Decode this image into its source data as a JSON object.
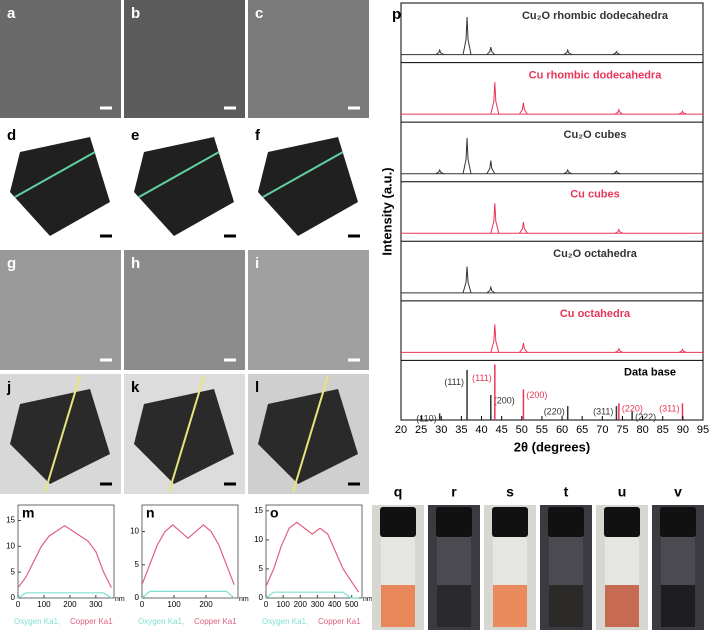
{
  "image_labels": [
    "a",
    "b",
    "c",
    "d",
    "e",
    "f",
    "g",
    "h",
    "i",
    "j",
    "k",
    "l"
  ],
  "xrd": {
    "label": "p",
    "ylabel": "Intensity (a.u.)",
    "xlabel": "2θ (degrees)",
    "xlim": [
      20,
      95
    ],
    "xticks": [
      20,
      25,
      30,
      35,
      40,
      45,
      50,
      55,
      60,
      65,
      70,
      75,
      80,
      85,
      90,
      95
    ],
    "traces": [
      {
        "name": "Cu₂O rhombic dodecahedra",
        "color": "#333333",
        "peaks": [
          29.6,
          36.4,
          42.3,
          61.4,
          73.5
        ],
        "heights": [
          0.12,
          1.0,
          0.2,
          0.12,
          0.08
        ]
      },
      {
        "name": "Cu rhombic dodecahedra",
        "color": "#e8365a",
        "peaks": [
          43.3,
          50.4,
          74.1,
          89.9
        ],
        "heights": [
          0.85,
          0.3,
          0.12,
          0.08
        ]
      },
      {
        "name": "Cu₂O cubes",
        "color": "#333333",
        "peaks": [
          29.6,
          36.4,
          42.3,
          61.4,
          73.5
        ],
        "heights": [
          0.1,
          0.95,
          0.35,
          0.1,
          0.07
        ]
      },
      {
        "name": "Cu cubes",
        "color": "#e8365a",
        "peaks": [
          43.3,
          50.4,
          74.1
        ],
        "heights": [
          0.8,
          0.3,
          0.1
        ]
      },
      {
        "name": "Cu₂O octahedra",
        "color": "#333333",
        "peaks": [
          36.4,
          42.3
        ],
        "heights": [
          0.7,
          0.15
        ]
      },
      {
        "name": "Cu octahedra",
        "color": "#e8365a",
        "peaks": [
          43.3,
          50.4,
          74.1,
          89.9
        ],
        "heights": [
          0.75,
          0.25,
          0.1,
          0.08
        ]
      }
    ],
    "database": {
      "name": "Data base",
      "peaks": [
        29.6,
        36.4,
        42.3,
        43.3,
        50.4,
        61.4,
        73.5,
        74.1,
        77.4,
        89.9
      ],
      "heights": [
        0.12,
        0.9,
        0.45,
        1.0,
        0.55,
        0.25,
        0.25,
        0.3,
        0.15,
        0.3
      ],
      "labels": [
        "(110)",
        "(111)",
        "(200)",
        "(111)",
        "(200)",
        "(220)",
        "(311)",
        "(220)",
        "(222)",
        "(311)"
      ],
      "colors": [
        "#333333",
        "#333333",
        "#333333",
        "#e8365a",
        "#e8365a",
        "#333333",
        "#333333",
        "#e8365a",
        "#333333",
        "#e8365a"
      ]
    }
  },
  "eds": {
    "legend": [
      "Oxygen Ka1,",
      "Copper Ka1"
    ],
    "legend_colors": [
      "#7ee0d0",
      "#e06080"
    ],
    "unit": "nm",
    "plots": [
      {
        "label": "m",
        "xlim": [
          0,
          370
        ],
        "xticks": [
          0,
          100,
          200,
          300
        ],
        "ylim": [
          0,
          18
        ],
        "yticks": [
          0,
          5,
          10,
          15
        ],
        "x": [
          0,
          30,
          60,
          90,
          120,
          150,
          180,
          210,
          240,
          270,
          300,
          330,
          360
        ],
        "copper": [
          2,
          4,
          7,
          10,
          12,
          13,
          14,
          13,
          12,
          11,
          9,
          5,
          2
        ],
        "oxygen": [
          0,
          1,
          1,
          1,
          1,
          1,
          1,
          1,
          1,
          1,
          1,
          1,
          0
        ]
      },
      {
        "label": "n",
        "xlim": [
          0,
          300
        ],
        "xticks": [
          0,
          100,
          200
        ],
        "ylim": [
          0,
          14
        ],
        "yticks": [
          0,
          5,
          10
        ],
        "x": [
          0,
          24,
          48,
          72,
          96,
          120,
          144,
          168,
          192,
          216,
          240,
          264,
          288
        ],
        "copper": [
          2,
          5,
          8,
          10,
          11,
          10,
          9,
          10,
          11,
          10,
          8,
          5,
          2
        ],
        "oxygen": [
          0,
          1,
          1,
          1,
          1,
          1,
          1,
          1,
          1,
          1,
          1,
          1,
          0
        ]
      },
      {
        "label": "o",
        "xlim": [
          0,
          560
        ],
        "xticks": [
          0,
          100,
          200,
          300,
          400,
          500
        ],
        "ylim": [
          0,
          16
        ],
        "yticks": [
          0,
          5,
          10,
          15
        ],
        "x": [
          0,
          45,
          90,
          135,
          180,
          225,
          270,
          315,
          360,
          405,
          450,
          495,
          540
        ],
        "copper": [
          2,
          5,
          9,
          12,
          13,
          12,
          11,
          12,
          11,
          8,
          5,
          3,
          1
        ],
        "oxygen": [
          0,
          1,
          1,
          1,
          1,
          1,
          1,
          1,
          1,
          1,
          1,
          0,
          0
        ]
      }
    ]
  },
  "vials": {
    "labels": [
      "q",
      "r",
      "s",
      "t",
      "u",
      "v"
    ],
    "liquid_colors": [
      "#e8875a",
      "#2a2a2e",
      "#e98b5c",
      "#2c2a28",
      "#c66a52",
      "#1e1e20"
    ]
  }
}
